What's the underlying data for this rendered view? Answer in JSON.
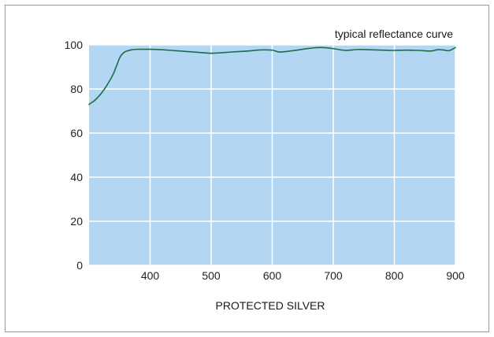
{
  "chart_data": {
    "type": "line",
    "title": "typical reflectance curve",
    "xlabel": "PROTECTED SILVER",
    "ylabel": "",
    "xlim": [
      300,
      900
    ],
    "ylim": [
      0,
      100
    ],
    "x_ticks": [
      400,
      500,
      600,
      700,
      800,
      900
    ],
    "y_ticks": [
      0,
      20,
      40,
      60,
      80,
      100
    ],
    "grid": true,
    "plot_background": "#b3d7f2",
    "grid_color": "#ffffff",
    "line_color": "#1f6b4a",
    "series": [
      {
        "x": [
          300,
          310,
          320,
          330,
          340,
          350,
          355,
          360,
          370,
          380,
          400,
          420,
          440,
          460,
          480,
          500,
          520,
          540,
          560,
          580,
          600,
          610,
          620,
          640,
          660,
          680,
          700,
          720,
          740,
          760,
          780,
          800,
          820,
          840,
          860,
          870,
          880,
          890,
          900
        ],
        "y": [
          73,
          75,
          78,
          82,
          87,
          94,
          96,
          97,
          97.8,
          98,
          98,
          97.8,
          97.4,
          97,
          96.6,
          96.2,
          96.5,
          96.9,
          97.2,
          97.7,
          97.6,
          96.8,
          96.9,
          97.6,
          98.4,
          98.8,
          98.3,
          97.5,
          97.9,
          97.8,
          97.6,
          97.5,
          97.6,
          97.5,
          97.2,
          97.8,
          97.7,
          97.4,
          98.8
        ]
      }
    ]
  }
}
